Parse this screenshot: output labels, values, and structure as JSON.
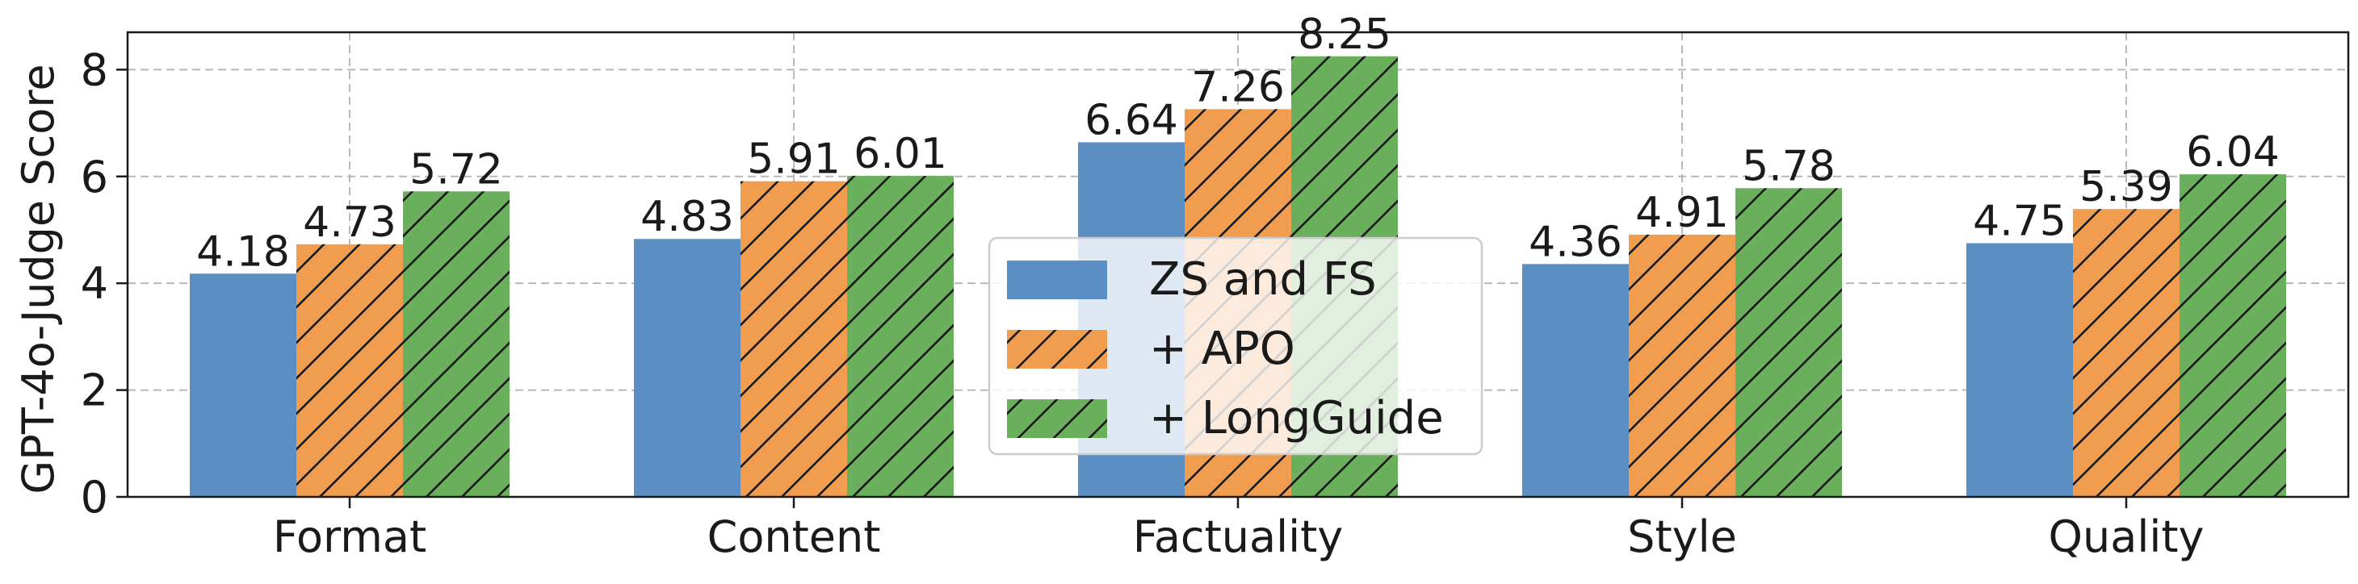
{
  "chart_data": {
    "type": "bar",
    "title": "",
    "xlabel": "",
    "ylabel": "GPT-4o-Judge Score",
    "categories": [
      "Format",
      "Content",
      "Factuality",
      "Style",
      "Quality"
    ],
    "series": [
      {
        "name": "ZS and FS",
        "values": [
          4.18,
          4.83,
          6.64,
          4.36,
          4.75
        ],
        "color": "#5b8fc4",
        "hatch": false
      },
      {
        "name": "+ APO",
        "values": [
          4.73,
          5.91,
          7.26,
          4.91,
          5.39
        ],
        "color": "#f19d4f",
        "hatch": true
      },
      {
        "name": "+ LongGuide",
        "values": [
          5.72,
          6.01,
          8.25,
          5.78,
          6.04
        ],
        "color": "#6aaf5c",
        "hatch": true
      }
    ],
    "value_labels": [
      [
        "4.18",
        "4.83",
        "6.64",
        "4.36",
        "4.75"
      ],
      [
        "4.73",
        "5.91",
        "7.26",
        "4.91",
        "5.39"
      ],
      [
        "5.72",
        "6.01",
        "8.25",
        "5.78",
        "6.04"
      ]
    ],
    "yticks": [
      0,
      2,
      4,
      6,
      8
    ],
    "ytick_labels": [
      "0",
      "2",
      "4",
      "6",
      "8"
    ],
    "ylim": [
      0,
      8.7
    ],
    "grid": true,
    "legend_position": "center"
  }
}
